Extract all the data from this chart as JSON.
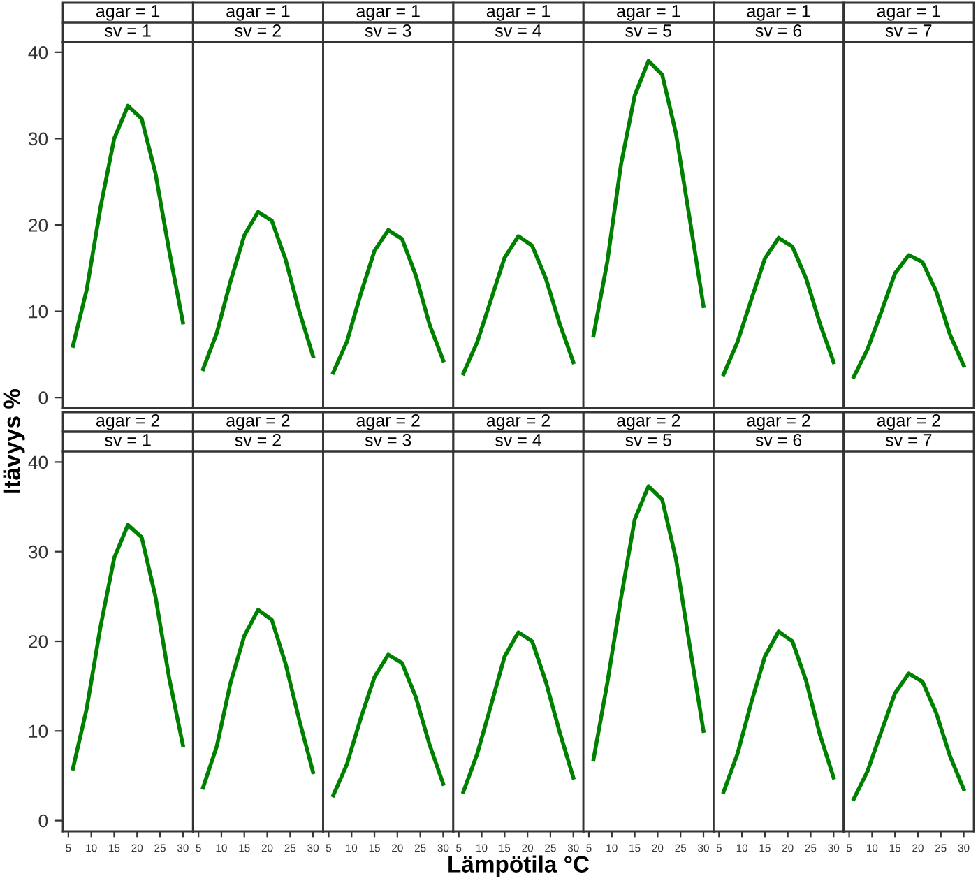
{
  "chart_data": [
    {
      "type": "line",
      "title": "agar = 1",
      "subtitle": "sv = 1",
      "ylabel": "Itävyys %",
      "x": [
        6,
        9,
        12,
        15,
        18,
        21,
        24,
        27,
        30
      ],
      "values": [
        6.0,
        12.5,
        22,
        30,
        33.8,
        32.3,
        26,
        17,
        8.7
      ],
      "color": "#008000",
      "xlim": [
        3.8,
        32.2
      ],
      "ylim": [
        -1.2,
        41.2
      ],
      "xticks": [
        5,
        10,
        15,
        20,
        25,
        30
      ],
      "yticks": [
        0,
        10,
        20,
        30,
        40
      ],
      "tick_labels": "y"
    },
    {
      "type": "line",
      "title": "agar = 1",
      "subtitle": "sv = 2",
      "x": [
        6,
        9,
        12,
        15,
        18,
        21,
        24,
        27,
        30
      ],
      "values": [
        3.3,
        7.5,
        13.5,
        18.8,
        21.5,
        20.5,
        16,
        10,
        4.8
      ],
      "color": "#008000",
      "xlim": [
        3.8,
        32.2
      ],
      "ylim": [
        -1.2,
        41.2
      ],
      "xticks": [
        5,
        10,
        15,
        20,
        25,
        30
      ],
      "yticks": [
        0,
        10,
        20,
        30,
        40
      ],
      "tick_labels": false
    },
    {
      "type": "line",
      "title": "agar = 1",
      "subtitle": "sv = 3",
      "x": [
        6,
        9,
        12,
        15,
        18,
        21,
        24,
        27,
        30
      ],
      "values": [
        2.9,
        6.5,
        12,
        17,
        19.4,
        18.4,
        14.2,
        8.5,
        4.3
      ],
      "color": "#008000",
      "xlim": [
        3.8,
        32.2
      ],
      "ylim": [
        -1.2,
        41.2
      ],
      "xticks": [
        5,
        10,
        15,
        20,
        25,
        30
      ],
      "yticks": [
        0,
        10,
        20,
        30,
        40
      ],
      "tick_labels": false
    },
    {
      "type": "line",
      "title": "agar = 1",
      "subtitle": "sv = 4",
      "x": [
        6,
        9,
        12,
        15,
        18,
        21,
        24,
        27,
        30
      ],
      "values": [
        2.8,
        6.4,
        11.3,
        16.2,
        18.7,
        17.6,
        13.8,
        8.6,
        4.1
      ],
      "color": "#008000",
      "xlim": [
        3.8,
        32.2
      ],
      "ylim": [
        -1.2,
        41.2
      ],
      "xticks": [
        5,
        10,
        15,
        20,
        25,
        30
      ],
      "yticks": [
        0,
        10,
        20,
        30,
        40
      ],
      "tick_labels": false
    },
    {
      "type": "line",
      "title": "agar = 1",
      "subtitle": "sv = 5",
      "x": [
        6,
        9,
        12,
        15,
        18,
        21,
        24,
        27,
        30
      ],
      "values": [
        7.2,
        15.7,
        27,
        35,
        39,
        37.4,
        30.6,
        20.7,
        10.6
      ],
      "color": "#008000",
      "xlim": [
        3.8,
        32.2
      ],
      "ylim": [
        -1.2,
        41.2
      ],
      "xticks": [
        5,
        10,
        15,
        20,
        25,
        30
      ],
      "yticks": [
        0,
        10,
        20,
        30,
        40
      ],
      "tick_labels": false
    },
    {
      "type": "line",
      "title": "agar = 1",
      "subtitle": "sv = 6",
      "x": [
        6,
        9,
        12,
        15,
        18,
        21,
        24,
        27,
        30
      ],
      "values": [
        2.7,
        6.4,
        11.3,
        16.1,
        18.5,
        17.5,
        13.8,
        8.6,
        4.1
      ],
      "color": "#008000",
      "xlim": [
        3.8,
        32.2
      ],
      "ylim": [
        -1.2,
        41.2
      ],
      "xticks": [
        5,
        10,
        15,
        20,
        25,
        30
      ],
      "yticks": [
        0,
        10,
        20,
        30,
        40
      ],
      "tick_labels": false
    },
    {
      "type": "line",
      "title": "agar = 1",
      "subtitle": "sv = 7",
      "x": [
        6,
        9,
        12,
        15,
        18,
        21,
        24,
        27,
        30
      ],
      "values": [
        2.4,
        5.6,
        9.9,
        14.4,
        16.5,
        15.7,
        12.3,
        7.3,
        3.7
      ],
      "color": "#008000",
      "xlim": [
        3.8,
        32.2
      ],
      "ylim": [
        -1.2,
        41.2
      ],
      "xticks": [
        5,
        10,
        15,
        20,
        25,
        30
      ],
      "yticks": [
        0,
        10,
        20,
        30,
        40
      ],
      "tick_labels": false
    },
    {
      "type": "line",
      "title": "agar = 2",
      "subtitle": "sv = 1",
      "x": [
        6,
        9,
        12,
        15,
        18,
        21,
        24,
        27,
        30
      ],
      "values": [
        5.8,
        12.5,
        21.6,
        29.3,
        33,
        31.6,
        25,
        15.9,
        8.4
      ],
      "color": "#008000",
      "xlim": [
        3.8,
        32.2
      ],
      "ylim": [
        -1.2,
        41.2
      ],
      "xticks": [
        5,
        10,
        15,
        20,
        25,
        30
      ],
      "yticks": [
        0,
        10,
        20,
        30,
        40
      ]
    },
    {
      "type": "line",
      "title": "agar = 2",
      "subtitle": "sv = 2",
      "x": [
        6,
        9,
        12,
        15,
        18,
        21,
        24,
        27,
        30
      ],
      "values": [
        3.7,
        8.3,
        15.4,
        20.6,
        23.5,
        22.4,
        17.5,
        11.2,
        5.4
      ],
      "color": "#008000",
      "xlim": [
        3.8,
        32.2
      ],
      "ylim": [
        -1.2,
        41.2
      ],
      "xticks": [
        5,
        10,
        15,
        20,
        25,
        30
      ],
      "yticks": [
        0,
        10,
        20,
        30,
        40
      ],
      "tick_labels": "x"
    },
    {
      "type": "line",
      "title": "agar = 2",
      "subtitle": "sv = 3",
      "x": [
        6,
        9,
        12,
        15,
        18,
        21,
        24,
        27,
        30
      ],
      "values": [
        2.8,
        6.3,
        11.4,
        16,
        18.5,
        17.6,
        13.8,
        8.5,
        4.1
      ],
      "color": "#008000",
      "xlim": [
        3.8,
        32.2
      ],
      "ylim": [
        -1.2,
        41.2
      ],
      "xticks": [
        5,
        10,
        15,
        20,
        25,
        30
      ],
      "yticks": [
        0,
        10,
        20,
        30,
        40
      ],
      "tick_labels": "x"
    },
    {
      "type": "line",
      "title": "agar = 2",
      "subtitle": "sv = 4",
      "xlabel": "Lämpötila °C",
      "x": [
        6,
        9,
        12,
        15,
        18,
        21,
        24,
        27,
        30
      ],
      "values": [
        3.2,
        7.4,
        12.8,
        18.3,
        21,
        20,
        15.5,
        9.9,
        4.8
      ],
      "color": "#008000",
      "xlim": [
        3.8,
        32.2
      ],
      "ylim": [
        -1.2,
        41.2
      ],
      "xticks": [
        5,
        10,
        15,
        20,
        25,
        30
      ],
      "yticks": [
        0,
        10,
        20,
        30,
        40
      ],
      "tick_labels": "x"
    },
    {
      "type": "line",
      "title": "agar = 2",
      "subtitle": "sv = 5",
      "x": [
        6,
        9,
        12,
        15,
        18,
        21,
        24,
        27,
        30
      ],
      "values": [
        6.8,
        15.3,
        24.8,
        33.6,
        37.3,
        35.8,
        29.2,
        19.5,
        10
      ],
      "color": "#008000",
      "xlim": [
        3.8,
        32.2
      ],
      "ylim": [
        -1.2,
        41.2
      ],
      "xticks": [
        5,
        10,
        15,
        20,
        25,
        30
      ],
      "yticks": [
        0,
        10,
        20,
        30,
        40
      ],
      "tick_labels": "x"
    },
    {
      "type": "line",
      "title": "agar = 2",
      "subtitle": "sv = 6",
      "x": [
        6,
        9,
        12,
        15,
        18,
        21,
        24,
        27,
        30
      ],
      "values": [
        3.2,
        7.4,
        13.1,
        18.3,
        21.1,
        20,
        15.6,
        9.6,
        4.8
      ],
      "color": "#008000",
      "xlim": [
        3.8,
        32.2
      ],
      "ylim": [
        -1.2,
        41.2
      ],
      "xticks": [
        5,
        10,
        15,
        20,
        25,
        30
      ],
      "yticks": [
        0,
        10,
        20,
        30,
        40
      ],
      "tick_labels": "x"
    },
    {
      "type": "line",
      "title": "agar = 2",
      "subtitle": "sv = 7",
      "x": [
        6,
        9,
        12,
        15,
        18,
        21,
        24,
        27,
        30
      ],
      "values": [
        2.4,
        5.5,
        9.9,
        14.2,
        16.4,
        15.5,
        12,
        7.2,
        3.5
      ],
      "color": "#008000",
      "xlim": [
        3.8,
        32.2
      ],
      "ylim": [
        -1.2,
        41.2
      ],
      "xticks": [
        5,
        10,
        15,
        20,
        25,
        30
      ],
      "yticks": [
        0,
        10,
        20,
        30,
        40
      ],
      "tick_labels": "x"
    }
  ]
}
